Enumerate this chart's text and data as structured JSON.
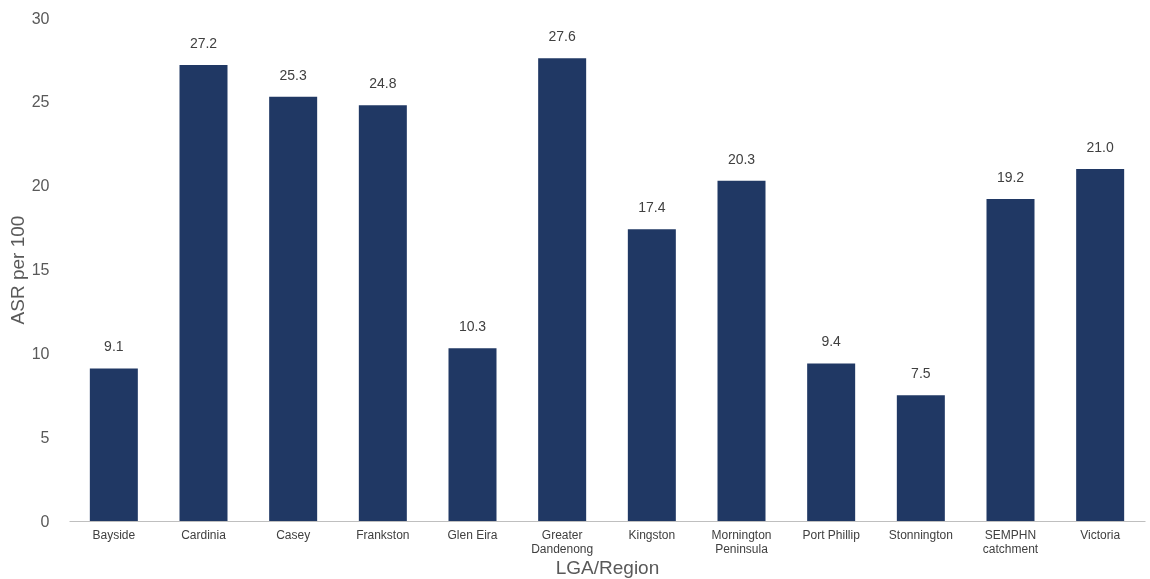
{
  "chart_data": {
    "type": "bar",
    "xlabel": "LGA/Region",
    "ylabel": "ASR per 100",
    "categories": [
      "Bayside",
      "Cardinia",
      "Casey",
      "Frankston",
      "Glen Eira",
      "Greater Dandenong",
      "Kingston",
      "Mornington Peninsula",
      "Port Phillip",
      "Stonnington",
      "SEMPHN catchment",
      "Victoria"
    ],
    "values": [
      9.1,
      27.2,
      25.3,
      24.8,
      10.3,
      27.6,
      17.4,
      20.3,
      9.4,
      7.5,
      19.2,
      21.0
    ],
    "value_labels": [
      "9.1",
      "27.2",
      "25.3",
      "24.8",
      "10.3",
      "27.6",
      "17.4",
      "20.3",
      "9.4",
      "7.5",
      "19.2",
      "21.0"
    ],
    "color": "#203864",
    "ylim": [
      0,
      30
    ],
    "yticks": [
      0,
      5,
      10,
      15,
      20,
      25,
      30
    ],
    "grid": false
  }
}
